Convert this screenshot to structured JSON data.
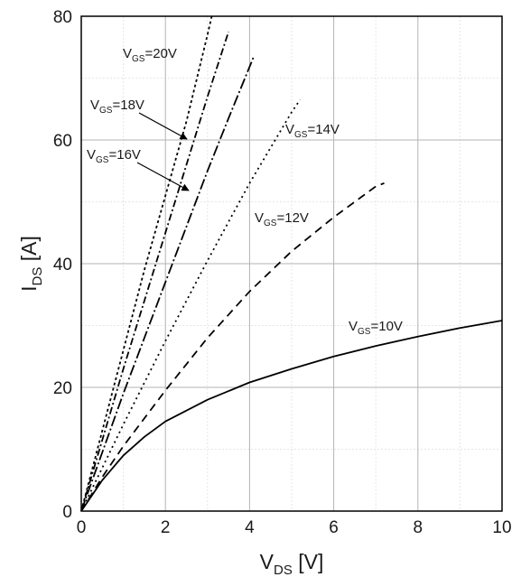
{
  "chart_data": {
    "type": "line",
    "title": "",
    "xlabel": {
      "main": "V",
      "sub": "DS",
      "unit": " [V]"
    },
    "ylabel": {
      "main": "I",
      "sub": "DS",
      "unit": " [A]"
    },
    "xlim": [
      0,
      10
    ],
    "ylim": [
      0,
      80
    ],
    "xticks": [
      "0",
      "2",
      "4",
      "6",
      "8",
      "10"
    ],
    "yticks": [
      "0",
      "20",
      "40",
      "60",
      "80"
    ],
    "grid": true,
    "legend": "inline labels",
    "series": [
      {
        "name": "V_GS=20V",
        "label": {
          "main": "V",
          "sub": "GS",
          "value": "=20V"
        },
        "dash": "dot",
        "x": [
          0,
          0.5,
          1,
          1.5,
          2,
          2.5,
          3,
          3.1
        ],
        "y": [
          0,
          13,
          26,
          39,
          51,
          63,
          77,
          80
        ]
      },
      {
        "name": "V_GS=18V",
        "label": {
          "main": "V",
          "sub": "GS",
          "value": "=18V"
        },
        "dash": "dashdot",
        "x": [
          0,
          0.5,
          1,
          1.5,
          2,
          2.5,
          3,
          3.5
        ],
        "y": [
          0,
          11.5,
          23,
          34,
          45,
          56,
          67,
          77.5
        ]
      },
      {
        "name": "V_GS=16V",
        "label": {
          "main": "V",
          "sub": "GS",
          "value": "=16V"
        },
        "dash": "longdashdot",
        "x": [
          0,
          0.5,
          1,
          1.5,
          2,
          2.5,
          3,
          3.5,
          4.1
        ],
        "y": [
          0,
          9.5,
          19,
          28,
          37,
          46,
          55,
          63.5,
          73.5
        ]
      },
      {
        "name": "V_GS=14V",
        "label": {
          "main": "V",
          "sub": "GS",
          "value": "=14V"
        },
        "dash": "dense-dot",
        "x": [
          0,
          0.5,
          1,
          2,
          3,
          4,
          5,
          5.2
        ],
        "y": [
          0,
          7,
          14,
          27.5,
          40.5,
          53,
          64.5,
          66.5
        ]
      },
      {
        "name": "V_GS=12V",
        "label": {
          "main": "V",
          "sub": "GS",
          "value": "=12V"
        },
        "dash": "dash",
        "x": [
          0,
          0.5,
          1,
          2,
          3,
          4,
          5,
          6,
          7,
          7.2
        ],
        "y": [
          0,
          5.5,
          10.5,
          19.5,
          28,
          35.5,
          42,
          47.5,
          52.5,
          53
        ]
      },
      {
        "name": "V_GS=10V",
        "label": {
          "main": "V",
          "sub": "GS",
          "value": "=10V"
        },
        "dash": "solid",
        "x": [
          0,
          0.25,
          0.5,
          1,
          1.5,
          2,
          3,
          4,
          5,
          6,
          7,
          8,
          9,
          10
        ],
        "y": [
          0,
          2.5,
          5,
          9,
          12,
          14.5,
          18,
          20.8,
          23,
          25,
          26.7,
          28.2,
          29.6,
          30.8
        ]
      }
    ]
  }
}
